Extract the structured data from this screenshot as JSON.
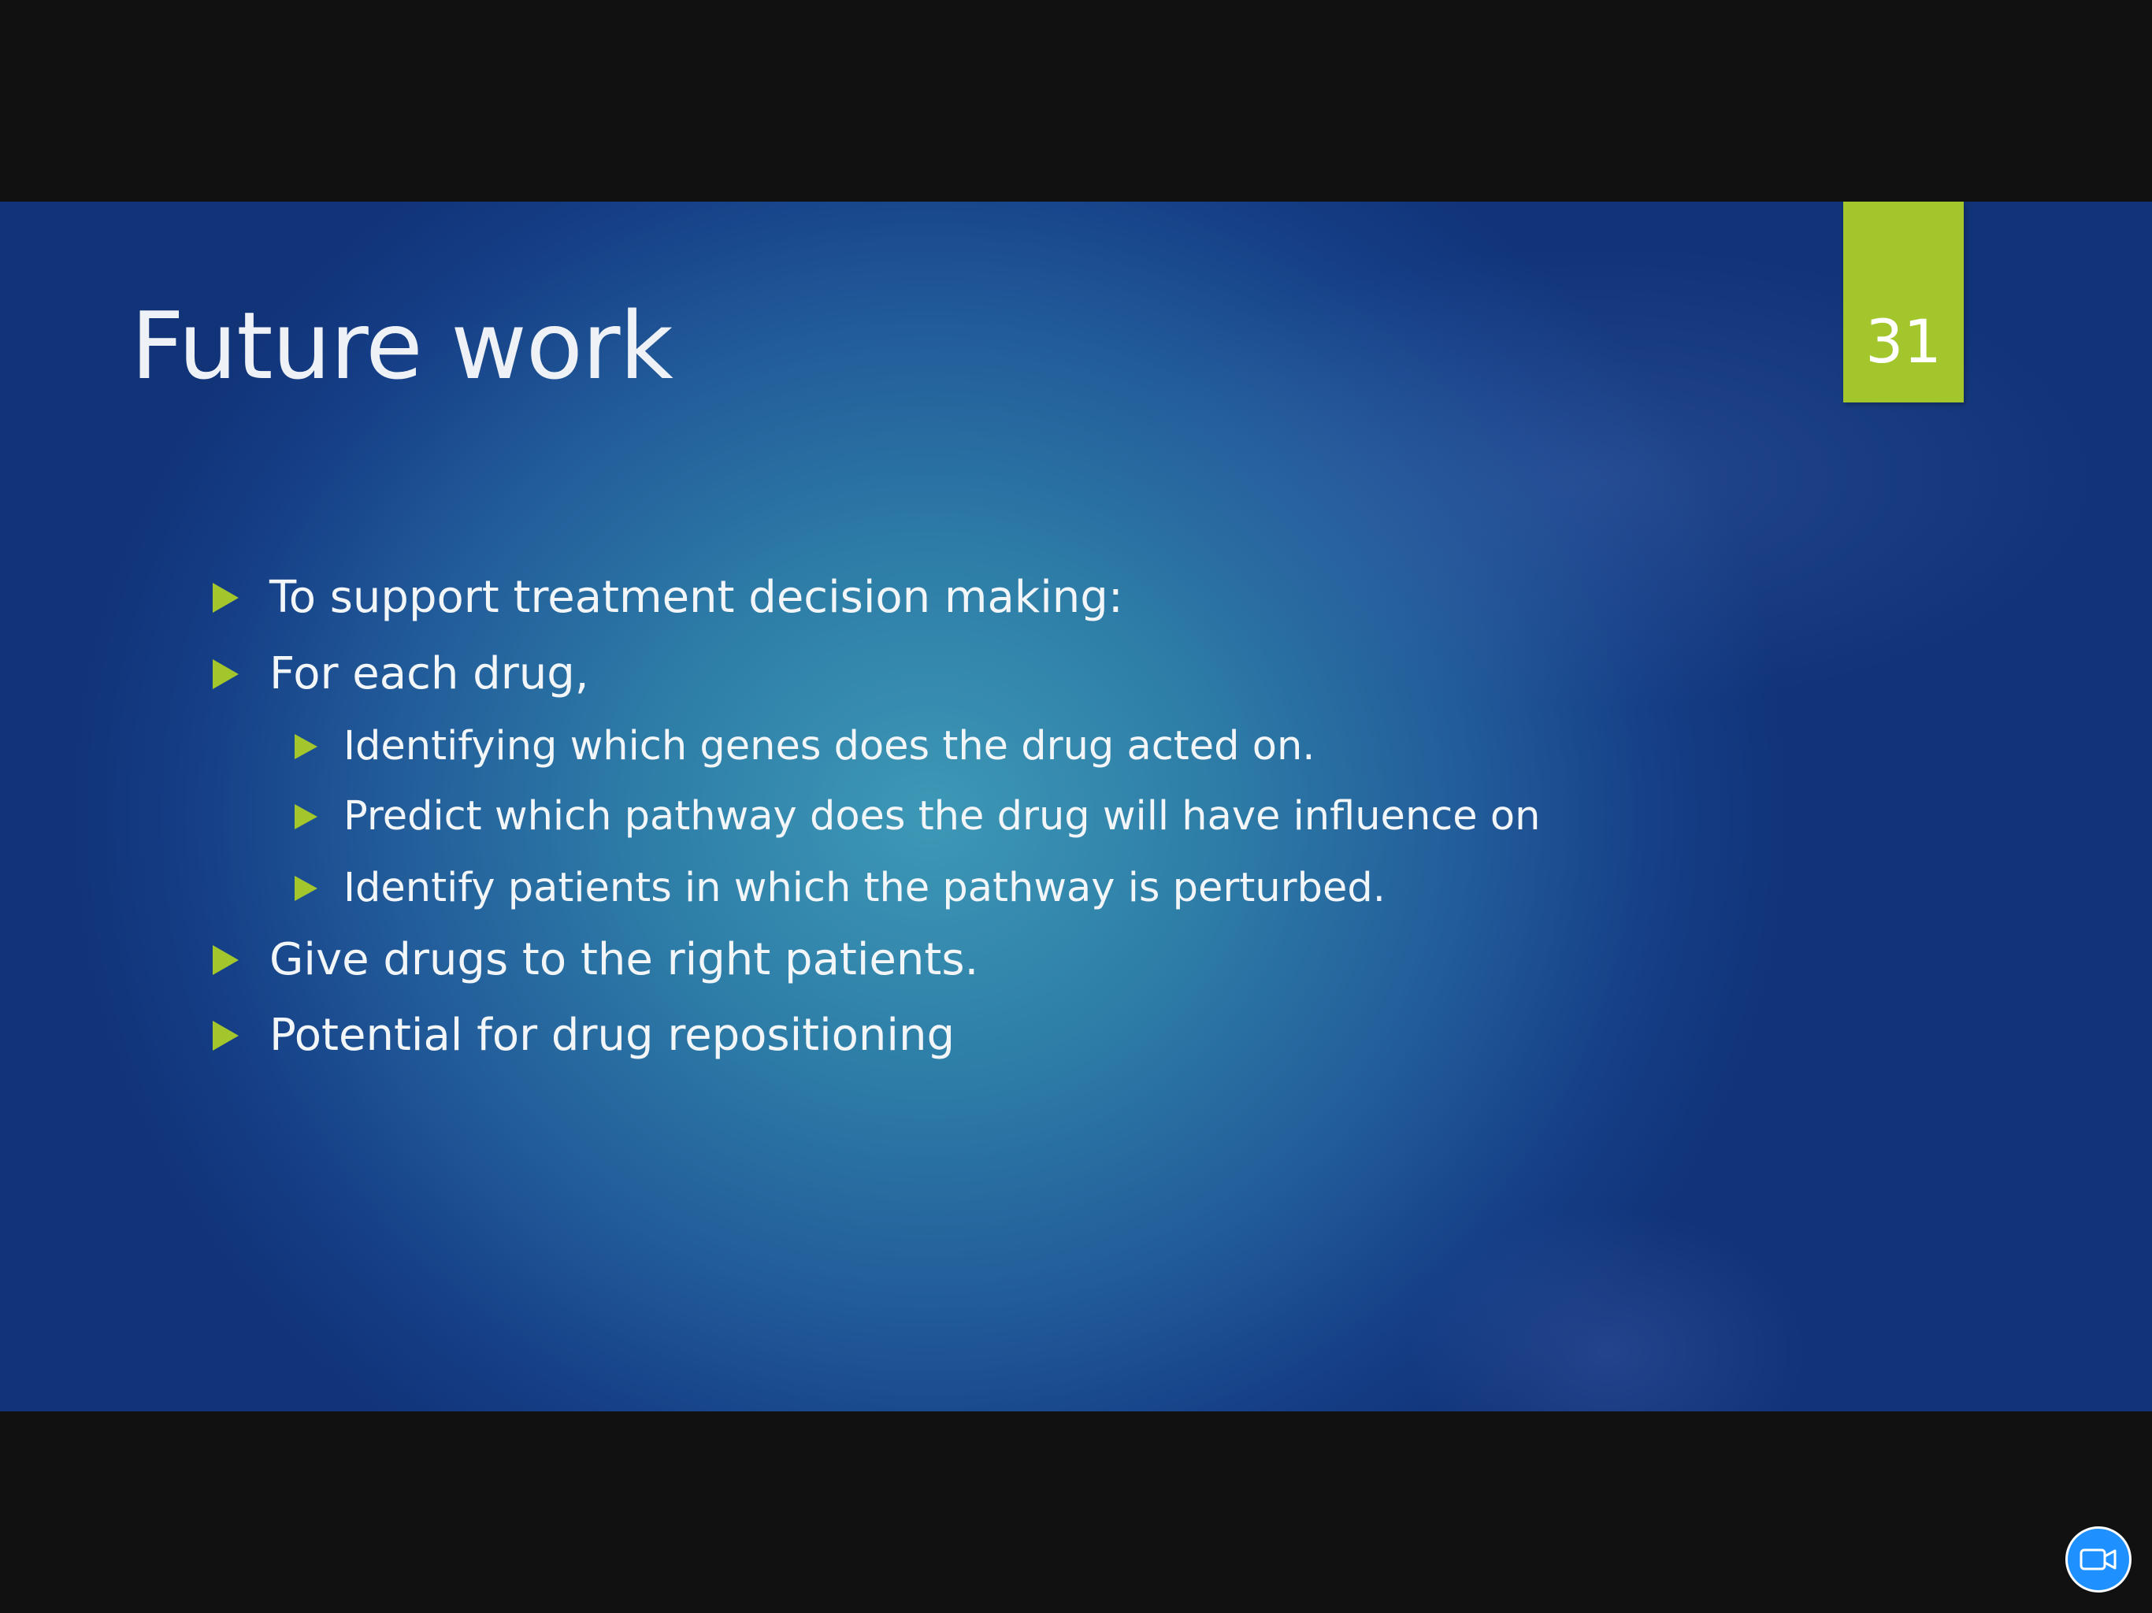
{
  "slide": {
    "title": "Future work",
    "number": "31",
    "bullets": [
      {
        "level": 1,
        "text": "To support treatment decision making:"
      },
      {
        "level": 1,
        "text": "For each drug,"
      },
      {
        "level": 2,
        "text": "Identifying which genes does the drug acted on."
      },
      {
        "level": 2,
        "text": "Predict which pathway does the drug will have influence on"
      },
      {
        "level": 2,
        "text": "Identify patients in which the pathway is perturbed."
      },
      {
        "level": 1,
        "text": "Give drugs to the right patients."
      },
      {
        "level": 1,
        "text": "Potential for drug repositioning"
      }
    ]
  },
  "colors": {
    "accent": "#a2c62c",
    "background_center": "#3d98b6",
    "background_edge": "#113378",
    "letterbox": "#111111",
    "video_button": "#1e90ff"
  },
  "icons": {
    "bullet": "triangle-right-icon",
    "video_button": "video-camera-icon"
  }
}
